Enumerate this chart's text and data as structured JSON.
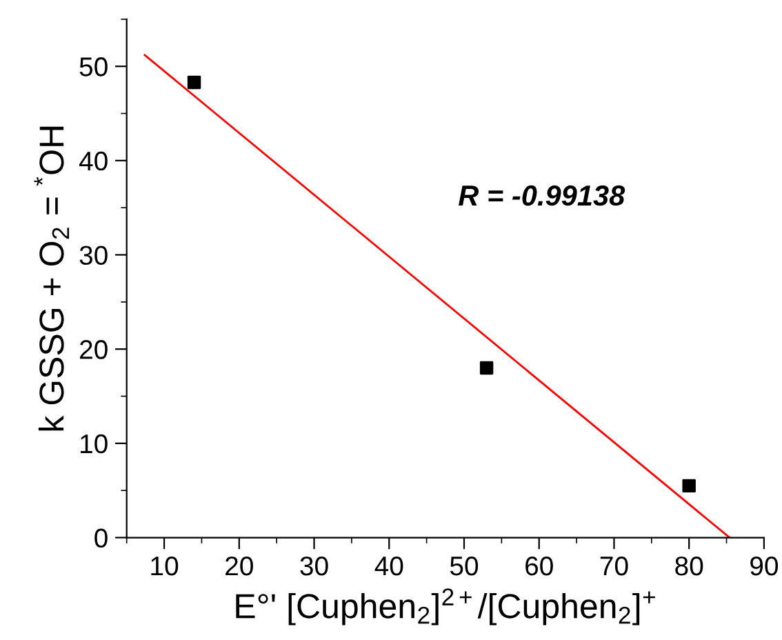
{
  "chart_data": {
    "type": "scatter",
    "xlabel": "E°' [Cuphen$_{2}$]$^{2+}$/[Cuphen$_{2}$]$^{+}$",
    "ylabel": "k GSSG + O$_{2}$ = $^{*}$OH",
    "series": [
      {
        "color": "#000000",
        "x": [
          14,
          53,
          80
        ],
        "values": [
          48.3,
          18,
          5.5
        ],
        "marker": "square"
      },
      {
        "type": "line",
        "color": "#ff0000",
        "x": [
          7.4,
          85.4
        ],
        "values": [
          51.2,
          0
        ],
        "line_style": "solid",
        "marker": "none"
      }
    ],
    "annotations": [
      "R = -0.99138"
    ],
    "xlim": [
      5,
      90
    ],
    "xticks": [
      10,
      20,
      30,
      40,
      50,
      60,
      70,
      80,
      90
    ],
    "ylim": [
      0,
      55
    ],
    "yticks": [
      0,
      10,
      20,
      30,
      40,
      50
    ],
    "grid": false,
    "legend": false
  }
}
